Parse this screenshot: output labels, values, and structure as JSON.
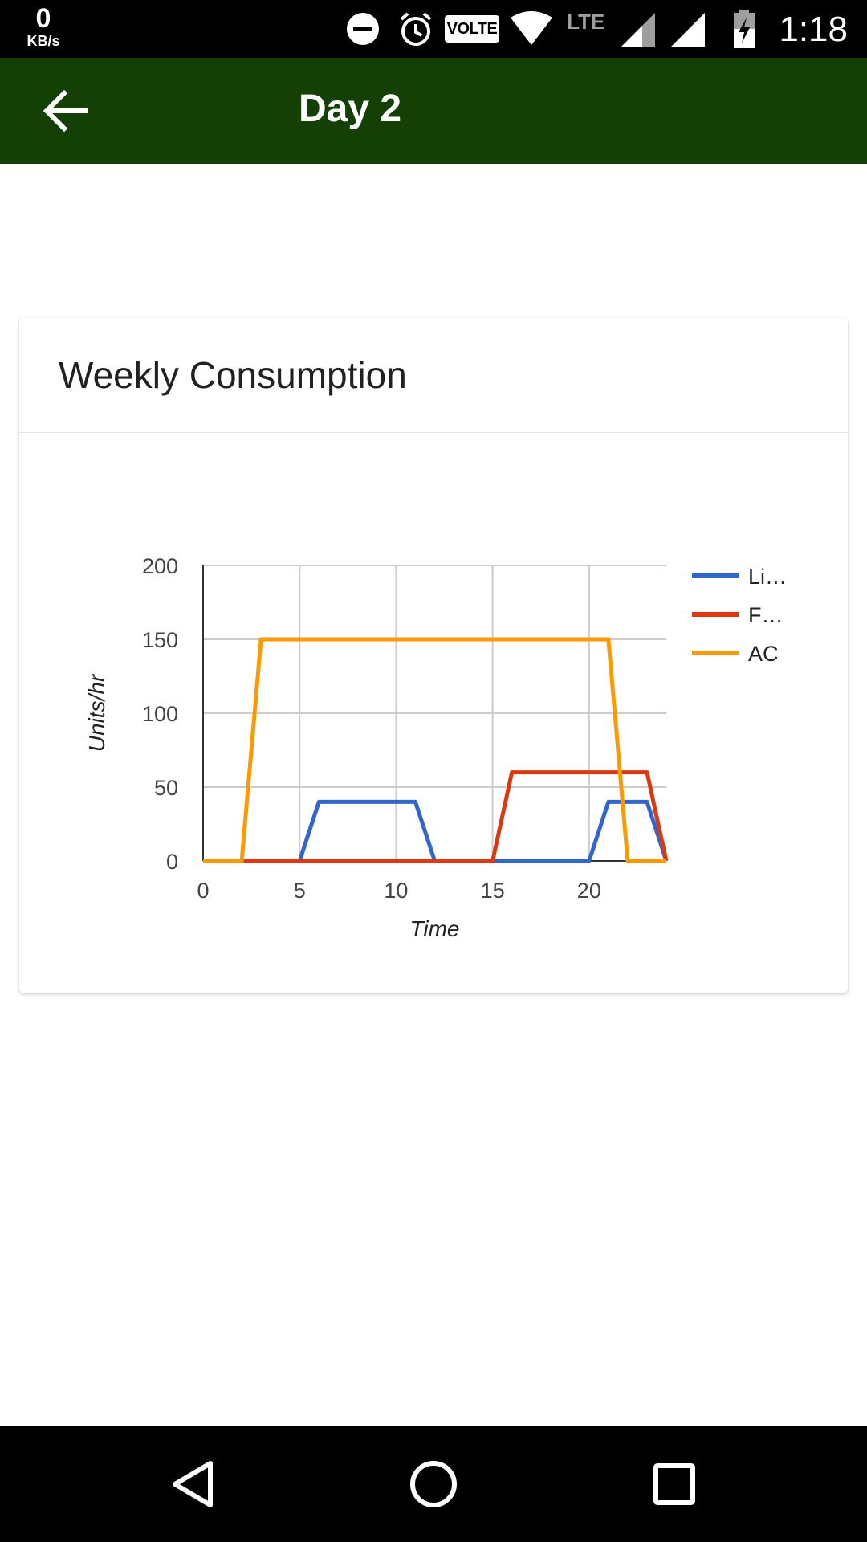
{
  "status_bar": {
    "speed_value": "0",
    "speed_unit": "KB/s",
    "volte": "VOLTE",
    "network": "LTE",
    "time": "1:18",
    "icons": [
      "do-not-disturb-icon",
      "alarm-icon",
      "volte-icon",
      "wifi-icon",
      "signal-icon",
      "signal-icon",
      "battery-charging-icon"
    ]
  },
  "app_bar": {
    "title": "Day 2",
    "back_icon": "arrow-back-icon",
    "color": "#143f05"
  },
  "card": {
    "title": "Weekly Consumption"
  },
  "chart_data": {
    "type": "line",
    "xlabel": "Time",
    "ylabel": "Units/hr",
    "xlim": [
      0,
      24
    ],
    "ylim": [
      0,
      200
    ],
    "x_ticks": [
      0,
      5,
      10,
      15,
      20
    ],
    "y_ticks": [
      0,
      50,
      100,
      150,
      200
    ],
    "grid": true,
    "legend_position": "right",
    "series": [
      {
        "name": "Li…",
        "color": "#3366cc",
        "x": [
          0,
          5,
          6,
          11,
          12,
          15,
          20,
          21,
          23,
          24
        ],
        "y": [
          0,
          0,
          40,
          40,
          0,
          0,
          0,
          40,
          40,
          0
        ]
      },
      {
        "name": "F…",
        "color": "#dc3912",
        "x": [
          0,
          15,
          16,
          23,
          24
        ],
        "y": [
          0,
          0,
          60,
          60,
          0
        ]
      },
      {
        "name": "AC",
        "color": "#ff9900",
        "x": [
          0,
          2,
          3,
          21,
          22,
          24
        ],
        "y": [
          0,
          0,
          150,
          150,
          0,
          0
        ]
      }
    ]
  },
  "nav_bar": {
    "back": "nav-back-icon",
    "home": "nav-home-icon",
    "recents": "nav-recents-icon"
  }
}
